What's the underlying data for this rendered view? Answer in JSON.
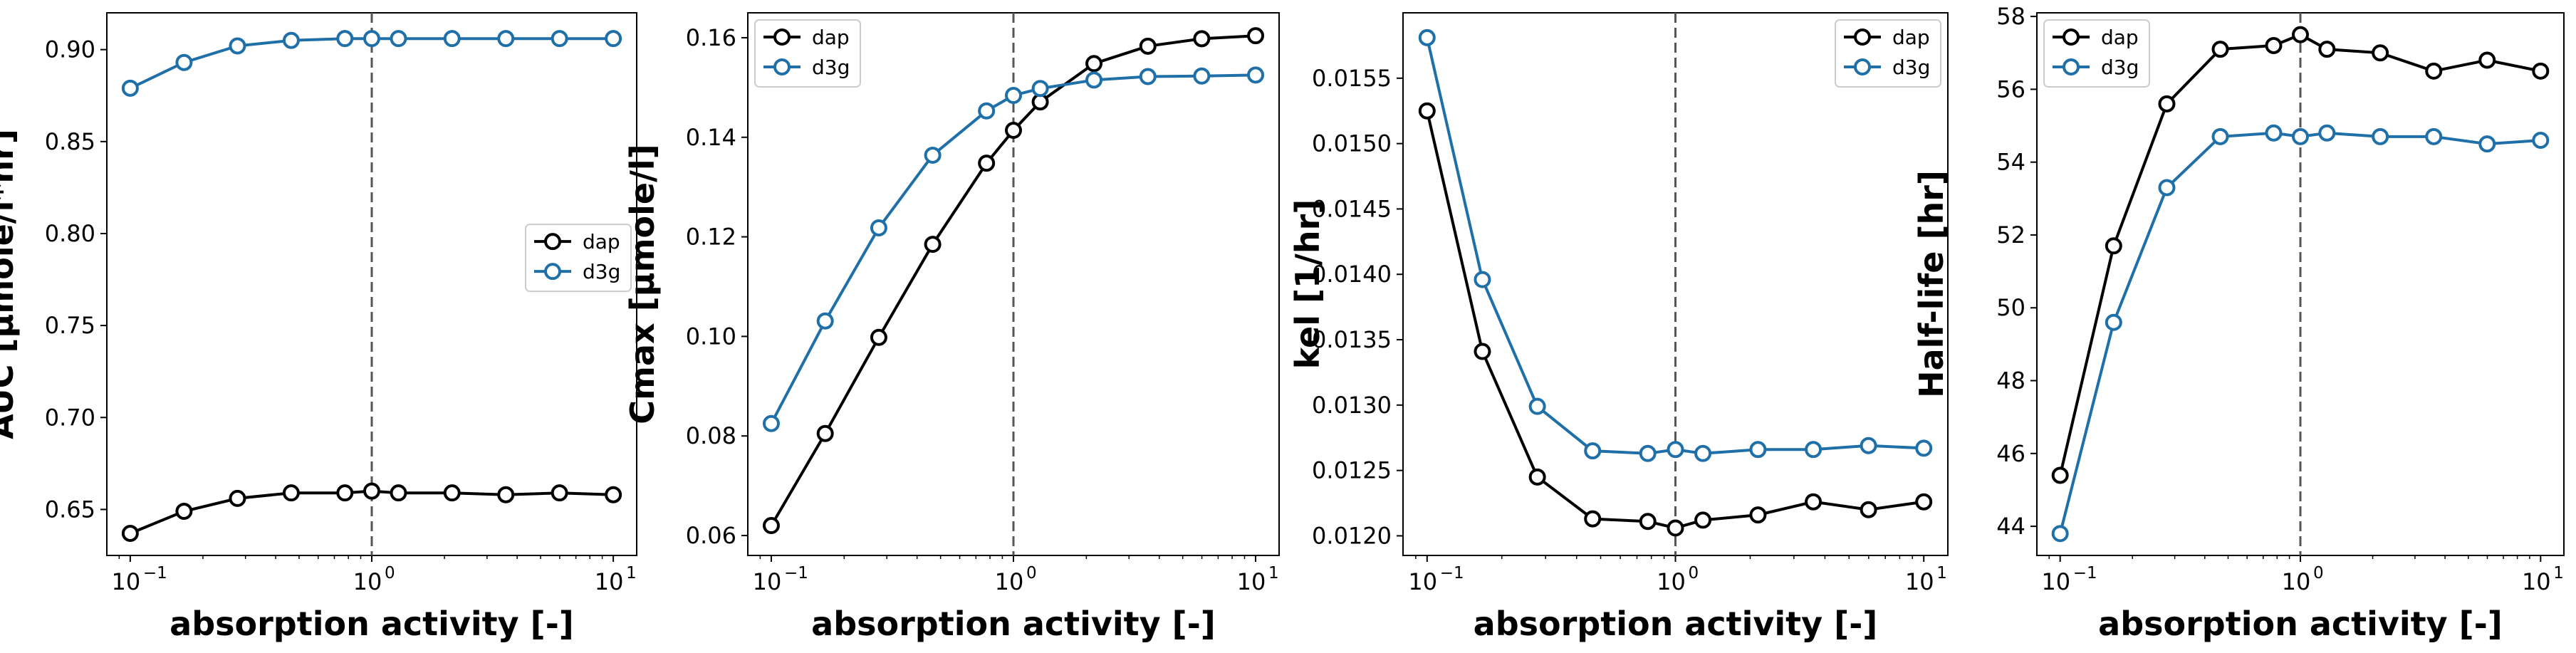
{
  "figure": {
    "background": "#ffffff",
    "series_colors": {
      "dap": "#000000",
      "d3g": "#1f6fa8"
    },
    "reference_line": {
      "x": 1,
      "color": "#555555",
      "style": "dashed"
    }
  },
  "chart_data": [
    {
      "type": "line",
      "xlabel": "absorption activity [-]",
      "ylabel": "AUC [µmole/l*hr]",
      "xscale": "log",
      "xlim": [
        0.08,
        12.5
      ],
      "ylim": [
        0.625,
        0.92
      ],
      "xticks": [
        {
          "value": 0.1,
          "base": "10",
          "exp": "−1"
        },
        {
          "value": 1,
          "base": "10",
          "exp": "0"
        },
        {
          "value": 10,
          "base": "10",
          "exp": "1"
        }
      ],
      "yticks": [
        {
          "value": 0.65,
          "label": "0.65"
        },
        {
          "value": 0.7,
          "label": "0.70"
        },
        {
          "value": 0.75,
          "label": "0.75"
        },
        {
          "value": 0.8,
          "label": "0.80"
        },
        {
          "value": 0.85,
          "label": "0.85"
        },
        {
          "value": 0.9,
          "label": "0.90"
        }
      ],
      "grid": false,
      "legend": "center-right",
      "x": [
        0.1,
        0.167,
        0.278,
        0.464,
        0.774,
        1.0,
        1.29,
        2.15,
        3.59,
        5.99,
        10.0
      ],
      "series": [
        {
          "name": "dap",
          "color": "#000000",
          "values": [
            0.637,
            0.649,
            0.656,
            0.659,
            0.659,
            0.66,
            0.659,
            0.659,
            0.658,
            0.659,
            0.658
          ]
        },
        {
          "name": "d3g",
          "color": "#1f6fa8",
          "values": [
            0.879,
            0.893,
            0.902,
            0.905,
            0.906,
            0.906,
            0.906,
            0.906,
            0.906,
            0.906,
            0.906
          ]
        }
      ]
    },
    {
      "type": "line",
      "xlabel": "absorption activity [-]",
      "ylabel": "Cmax [µmole/l]",
      "xscale": "log",
      "xlim": [
        0.08,
        12.5
      ],
      "ylim": [
        0.056,
        0.165
      ],
      "xticks": [
        {
          "value": 0.1,
          "base": "10",
          "exp": "−1"
        },
        {
          "value": 1,
          "base": "10",
          "exp": "0"
        },
        {
          "value": 10,
          "base": "10",
          "exp": "1"
        }
      ],
      "yticks": [
        {
          "value": 0.06,
          "label": "0.06"
        },
        {
          "value": 0.08,
          "label": "0.08"
        },
        {
          "value": 0.1,
          "label": "0.10"
        },
        {
          "value": 0.12,
          "label": "0.12"
        },
        {
          "value": 0.14,
          "label": "0.14"
        },
        {
          "value": 0.16,
          "label": "0.16"
        }
      ],
      "grid": false,
      "legend": "top-left",
      "x": [
        0.1,
        0.167,
        0.278,
        0.464,
        0.774,
        1.0,
        1.29,
        2.15,
        3.59,
        5.99,
        10.0
      ],
      "series": [
        {
          "name": "dap",
          "color": "#000000",
          "values": [
            0.062,
            0.0805,
            0.0998,
            0.1185,
            0.1348,
            0.1414,
            0.1471,
            0.1548,
            0.1583,
            0.1598,
            0.1604
          ]
        },
        {
          "name": "d3g",
          "color": "#1f6fa8",
          "values": [
            0.0825,
            0.1031,
            0.1218,
            0.1364,
            0.1453,
            0.1484,
            0.1498,
            0.1515,
            0.1522,
            0.1523,
            0.1525
          ]
        }
      ]
    },
    {
      "type": "line",
      "xlabel": "absorption activity [-]",
      "ylabel": "kel [1/hr]",
      "xscale": "log",
      "xlim": [
        0.08,
        12.5
      ],
      "ylim": [
        0.01185,
        0.016
      ],
      "xticks": [
        {
          "value": 0.1,
          "base": "10",
          "exp": "−1"
        },
        {
          "value": 1,
          "base": "10",
          "exp": "0"
        },
        {
          "value": 10,
          "base": "10",
          "exp": "1"
        }
      ],
      "yticks": [
        {
          "value": 0.012,
          "label": "0.0120"
        },
        {
          "value": 0.0125,
          "label": "0.0125"
        },
        {
          "value": 0.013,
          "label": "0.0130"
        },
        {
          "value": 0.0135,
          "label": "0.0135"
        },
        {
          "value": 0.014,
          "label": "0.0140"
        },
        {
          "value": 0.0145,
          "label": "0.0145"
        },
        {
          "value": 0.015,
          "label": "0.0150"
        },
        {
          "value": 0.0155,
          "label": "0.0155"
        }
      ],
      "grid": false,
      "legend": "top-right",
      "x": [
        0.1,
        0.167,
        0.278,
        0.464,
        0.774,
        1.0,
        1.29,
        2.15,
        3.59,
        5.99,
        10.0
      ],
      "series": [
        {
          "name": "dap",
          "color": "#000000",
          "values": [
            0.01525,
            0.01341,
            0.01245,
            0.01213,
            0.01211,
            0.01206,
            0.01212,
            0.01216,
            0.01226,
            0.0122,
            0.01226
          ]
        },
        {
          "name": "d3g",
          "color": "#1f6fa8",
          "values": [
            0.01581,
            0.01396,
            0.01299,
            0.01265,
            0.01263,
            0.01266,
            0.01263,
            0.01266,
            0.01266,
            0.01269,
            0.01267
          ]
        }
      ]
    },
    {
      "type": "line",
      "xlabel": "absorption activity [-]",
      "ylabel": "Half-life [hr]",
      "xscale": "log",
      "xlim": [
        0.08,
        12.5
      ],
      "ylim": [
        43.2,
        58.1
      ],
      "xticks": [
        {
          "value": 0.1,
          "base": "10",
          "exp": "−1"
        },
        {
          "value": 1,
          "base": "10",
          "exp": "0"
        },
        {
          "value": 10,
          "base": "10",
          "exp": "1"
        }
      ],
      "yticks": [
        {
          "value": 44,
          "label": "44"
        },
        {
          "value": 46,
          "label": "46"
        },
        {
          "value": 48,
          "label": "48"
        },
        {
          "value": 50,
          "label": "50"
        },
        {
          "value": 52,
          "label": "52"
        },
        {
          "value": 54,
          "label": "54"
        },
        {
          "value": 56,
          "label": "56"
        },
        {
          "value": 58,
          "label": "58"
        }
      ],
      "grid": false,
      "legend": "top-left",
      "x": [
        0.1,
        0.167,
        0.278,
        0.464,
        0.774,
        1.0,
        1.29,
        2.15,
        3.59,
        5.99,
        10.0
      ],
      "series": [
        {
          "name": "dap",
          "color": "#000000",
          "values": [
            45.4,
            51.7,
            55.6,
            57.1,
            57.2,
            57.5,
            57.1,
            57.0,
            56.5,
            56.8,
            56.5
          ]
        },
        {
          "name": "d3g",
          "color": "#1f6fa8",
          "values": [
            43.8,
            49.6,
            53.3,
            54.7,
            54.8,
            54.7,
            54.8,
            54.7,
            54.7,
            54.5,
            54.6
          ]
        }
      ]
    }
  ]
}
